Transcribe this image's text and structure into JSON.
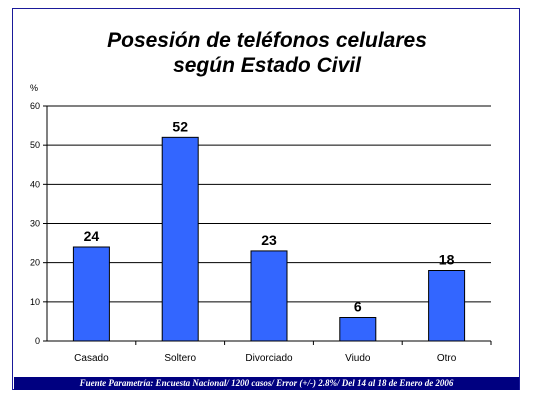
{
  "chart_data": {
    "type": "bar",
    "title_line1": "Posesión de teléfonos celulares",
    "title_line2": "según Estado Civil",
    "ylabel": "%",
    "categories": [
      "Casado",
      "Soltero",
      "Divorciado",
      "Viudo",
      "Otro"
    ],
    "values": [
      24,
      52,
      23,
      6,
      18
    ],
    "ylim": [
      0,
      60
    ],
    "yticks": [
      0,
      10,
      20,
      30,
      40,
      50,
      60
    ],
    "grid": true,
    "bar_color": "#3366ff"
  },
  "footer": "Fuente Parametría: Encuesta Nacional/ 1200 casos/ Error (+/-) 2.8%/ Del 14 al 18 de Enero de 2006"
}
